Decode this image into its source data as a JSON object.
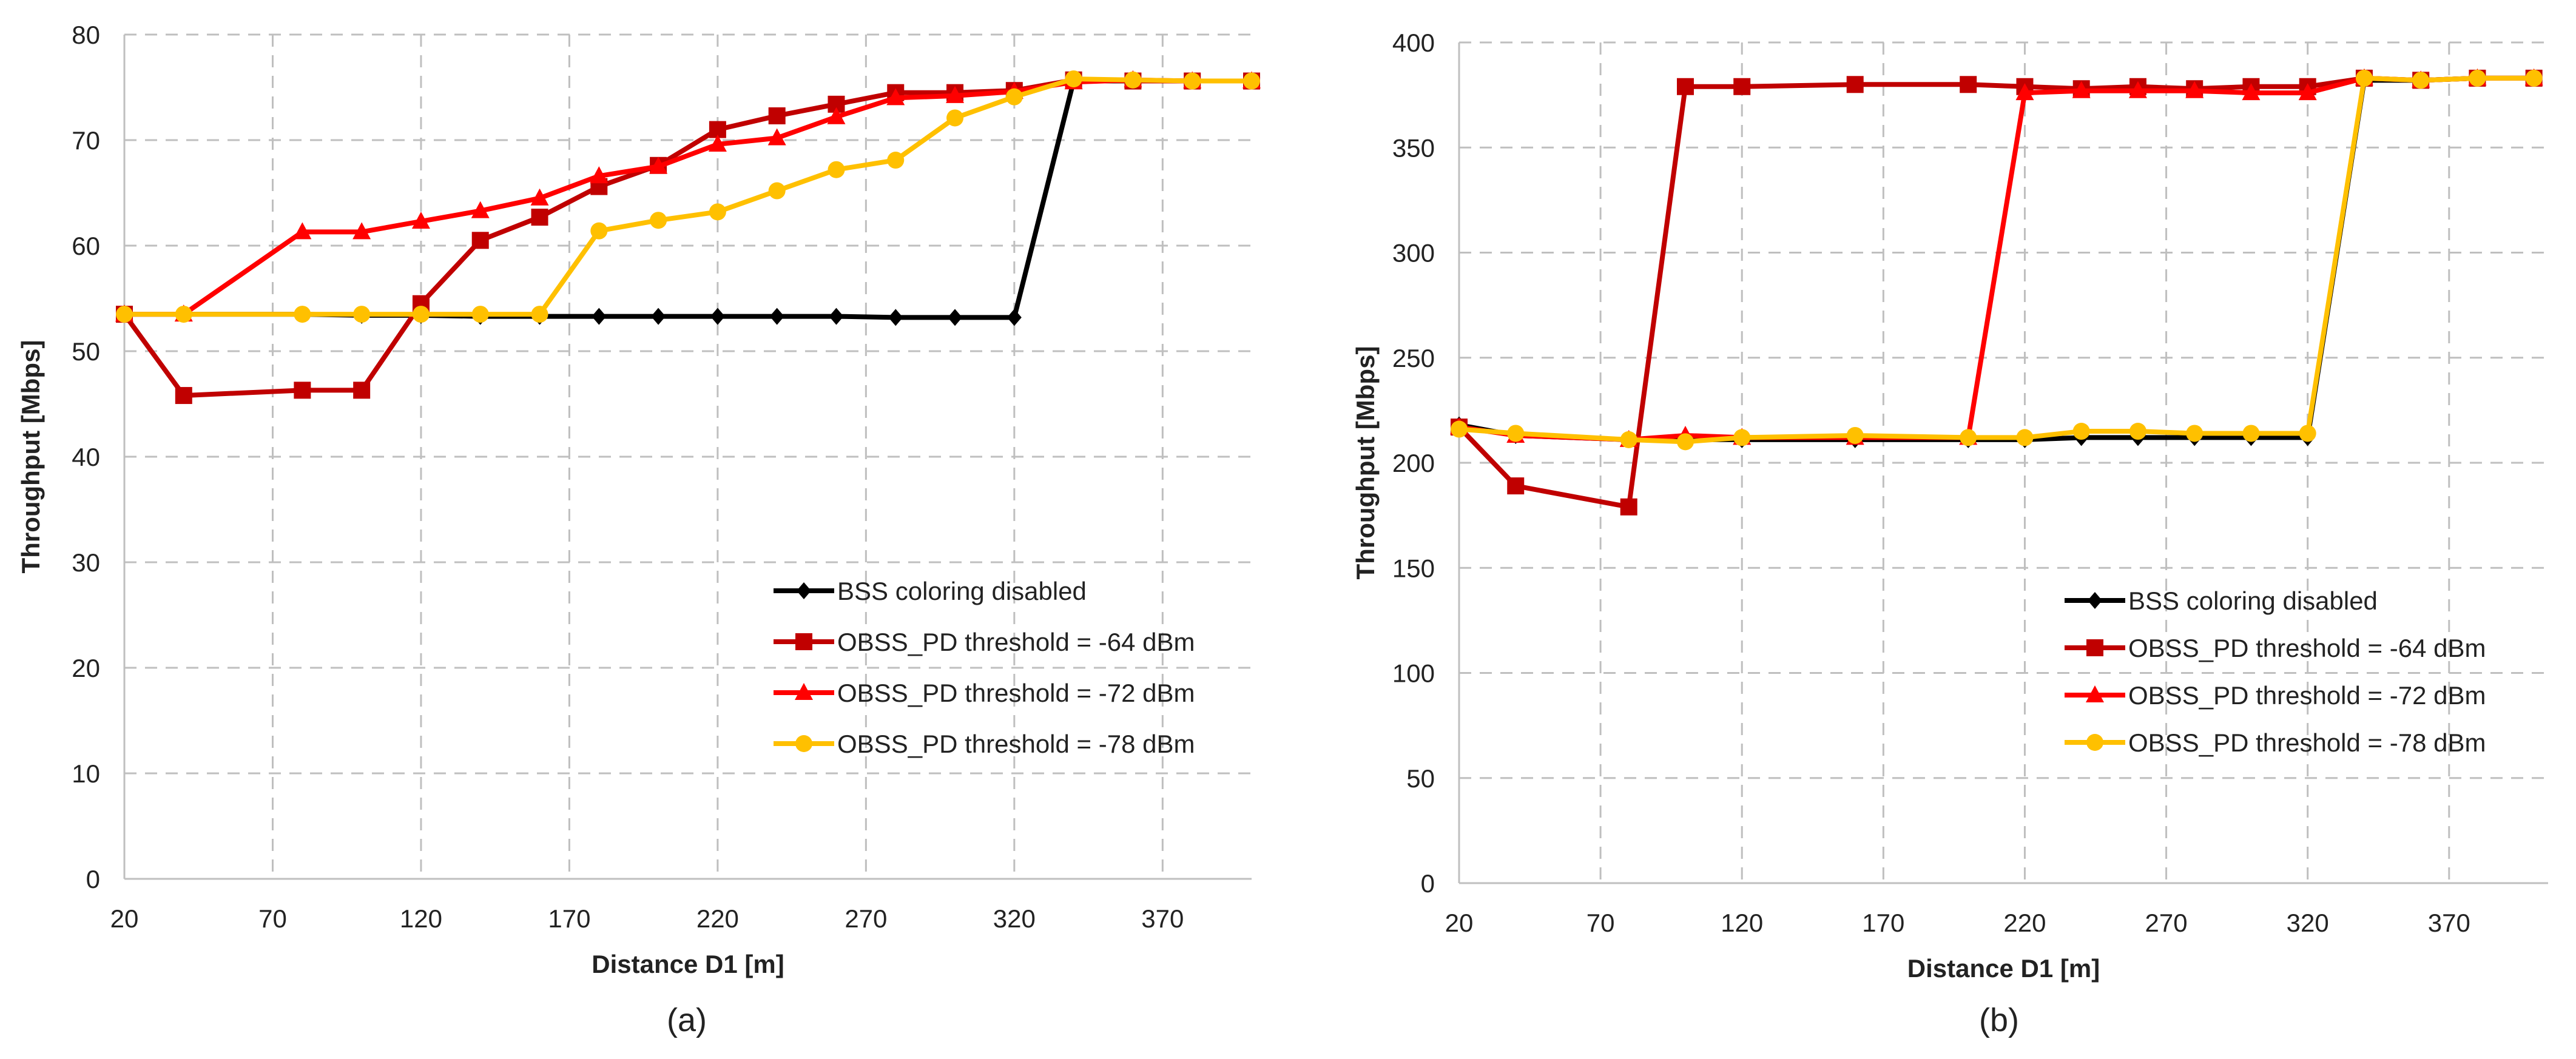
{
  "chart_data": [
    {
      "type": "line",
      "caption": "(a)",
      "xlabel": "Distance D1 [m]",
      "ylabel": "Throughput [Mbps]",
      "xlim": [
        20,
        400
      ],
      "ylim": [
        0,
        80
      ],
      "xticks": [
        20,
        70,
        120,
        170,
        220,
        270,
        320,
        370
      ],
      "yticks": [
        0,
        10,
        20,
        30,
        40,
        50,
        60,
        70,
        80
      ],
      "grid": true,
      "legend_position": "bottom-right",
      "x": [
        20,
        40,
        80,
        100,
        120,
        140,
        160,
        180,
        200,
        220,
        240,
        260,
        280,
        300,
        320,
        340,
        360,
        380,
        400
      ],
      "series": [
        {
          "name": "BSS coloring disabled",
          "color": "#000000",
          "marker": "diamond",
          "values": [
            53.5,
            53.5,
            53.5,
            53.4,
            53.4,
            53.3,
            53.3,
            53.3,
            53.3,
            53.3,
            53.3,
            53.3,
            53.2,
            53.2,
            53.2,
            75.6,
            75.6,
            75.6,
            75.6
          ]
        },
        {
          "name": "OBSS_PD threshold = -64 dBm",
          "color": "#c00000",
          "marker": "square",
          "values": [
            53.5,
            45.8,
            46.3,
            46.3,
            54.5,
            60.5,
            62.7,
            65.6,
            67.6,
            71.0,
            72.3,
            73.4,
            74.5,
            74.5,
            74.7,
            75.7,
            75.6,
            75.6,
            75.6
          ]
        },
        {
          "name": "OBSS_PD threshold = -72 dBm",
          "color": "#ff0000",
          "marker": "triangle",
          "values": [
            53.5,
            53.5,
            61.3,
            61.3,
            62.3,
            63.3,
            64.5,
            66.6,
            67.5,
            69.6,
            70.2,
            72.2,
            74.0,
            74.2,
            74.6,
            75.5,
            75.7,
            75.6,
            75.6
          ]
        },
        {
          "name": "OBSS_PD threshold = -78 dBm",
          "color": "#ffc000",
          "marker": "circle",
          "values": [
            53.5,
            53.5,
            53.5,
            53.5,
            53.5,
            53.5,
            53.5,
            61.4,
            62.4,
            63.2,
            65.2,
            67.2,
            68.1,
            72.1,
            74.1,
            75.8,
            75.7,
            75.6,
            75.6
          ]
        }
      ]
    },
    {
      "type": "line",
      "caption": "(b)",
      "xlabel": "Distance D1 [m]",
      "ylabel": "Throughput [Mbps]",
      "xlim": [
        20,
        405
      ],
      "ylim": [
        0,
        400
      ],
      "xticks": [
        20,
        70,
        120,
        170,
        220,
        270,
        320,
        370
      ],
      "yticks": [
        0,
        50,
        100,
        150,
        200,
        250,
        300,
        350,
        400
      ],
      "grid": true,
      "legend_position": "bottom-right",
      "x": [
        20,
        40,
        80,
        100,
        120,
        160,
        200,
        220,
        240,
        260,
        280,
        300,
        320,
        340,
        360,
        380,
        400
      ],
      "series": [
        {
          "name": "BSS coloring disabled",
          "color": "#000000",
          "marker": "diamond",
          "values": [
            218,
            213,
            211,
            211,
            211,
            211,
            211,
            211,
            212,
            212,
            212,
            212,
            212,
            382,
            382,
            383,
            383
          ]
        },
        {
          "name": "OBSS_PD threshold = -64 dBm",
          "color": "#c00000",
          "marker": "square",
          "values": [
            217,
            189,
            179,
            379,
            379,
            380,
            380,
            379,
            378,
            379,
            378,
            379,
            379,
            383,
            382,
            383,
            383
          ]
        },
        {
          "name": "OBSS_PD threshold = -72 dBm",
          "color": "#ff0000",
          "marker": "triangle",
          "values": [
            217,
            213,
            211,
            213,
            212,
            212,
            212,
            376,
            377,
            377,
            377,
            376,
            376,
            383,
            382,
            383,
            383
          ]
        },
        {
          "name": "OBSS_PD threshold = -78 dBm",
          "color": "#ffc000",
          "marker": "circle",
          "values": [
            216,
            214,
            211,
            210,
            212,
            213,
            212,
            212,
            215,
            215,
            214,
            214,
            214,
            383,
            382,
            383,
            383
          ]
        }
      ]
    }
  ]
}
